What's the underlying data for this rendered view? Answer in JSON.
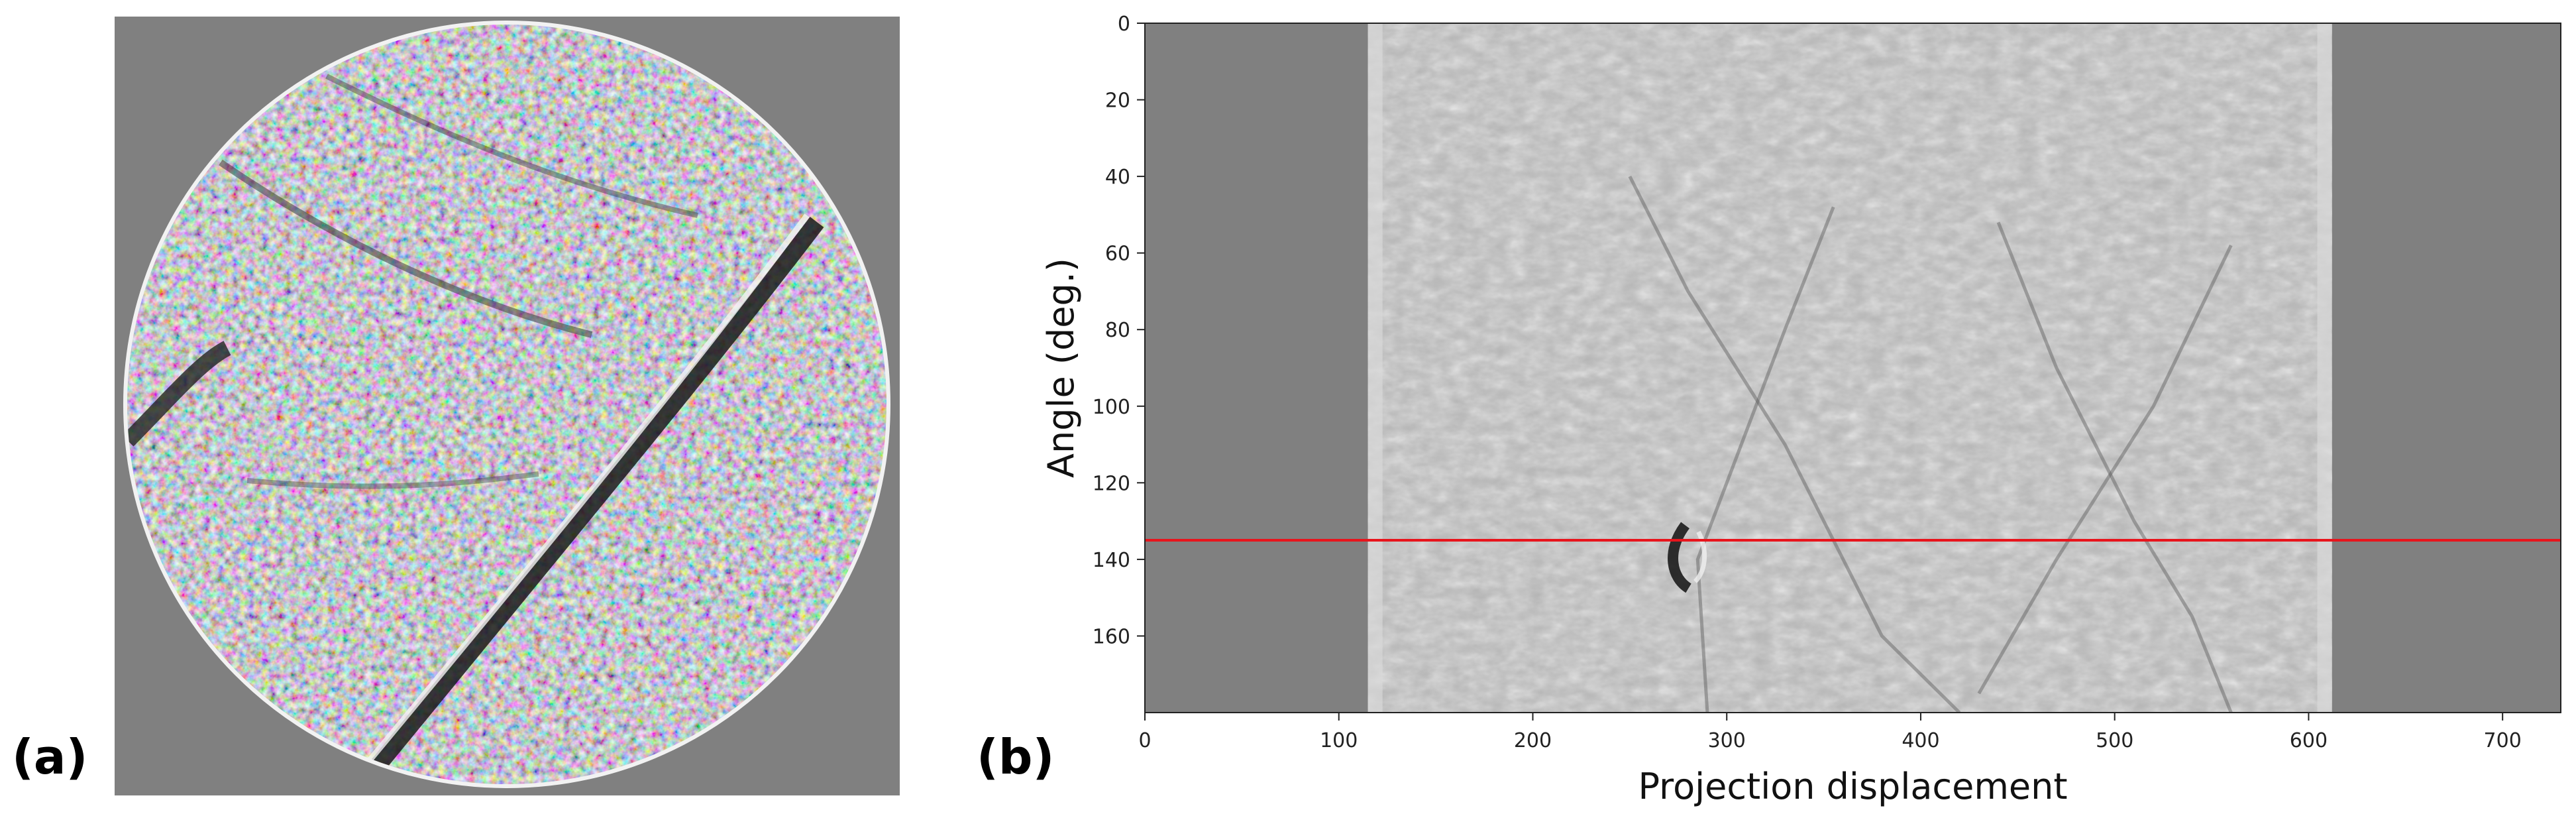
{
  "panels": {
    "a": {
      "label": "(a)"
    },
    "b": {
      "label": "(b)"
    }
  },
  "colors": {
    "background_gray": "#808080",
    "sinogram_gray": "#b4b4b4",
    "marker_line": "#e8141c"
  },
  "chart_data": {
    "type": "heatmap",
    "xlabel": "Projection displacement",
    "ylabel": "Angle (deg.)",
    "xlim": [
      0,
      730
    ],
    "ylim": [
      180,
      0
    ],
    "x_ticks": [
      0,
      100,
      200,
      300,
      400,
      500,
      600,
      700
    ],
    "y_ticks": [
      0,
      20,
      40,
      60,
      80,
      100,
      120,
      140,
      160
    ],
    "data_band_x": [
      115,
      612
    ],
    "highlight_angle": 135
  }
}
